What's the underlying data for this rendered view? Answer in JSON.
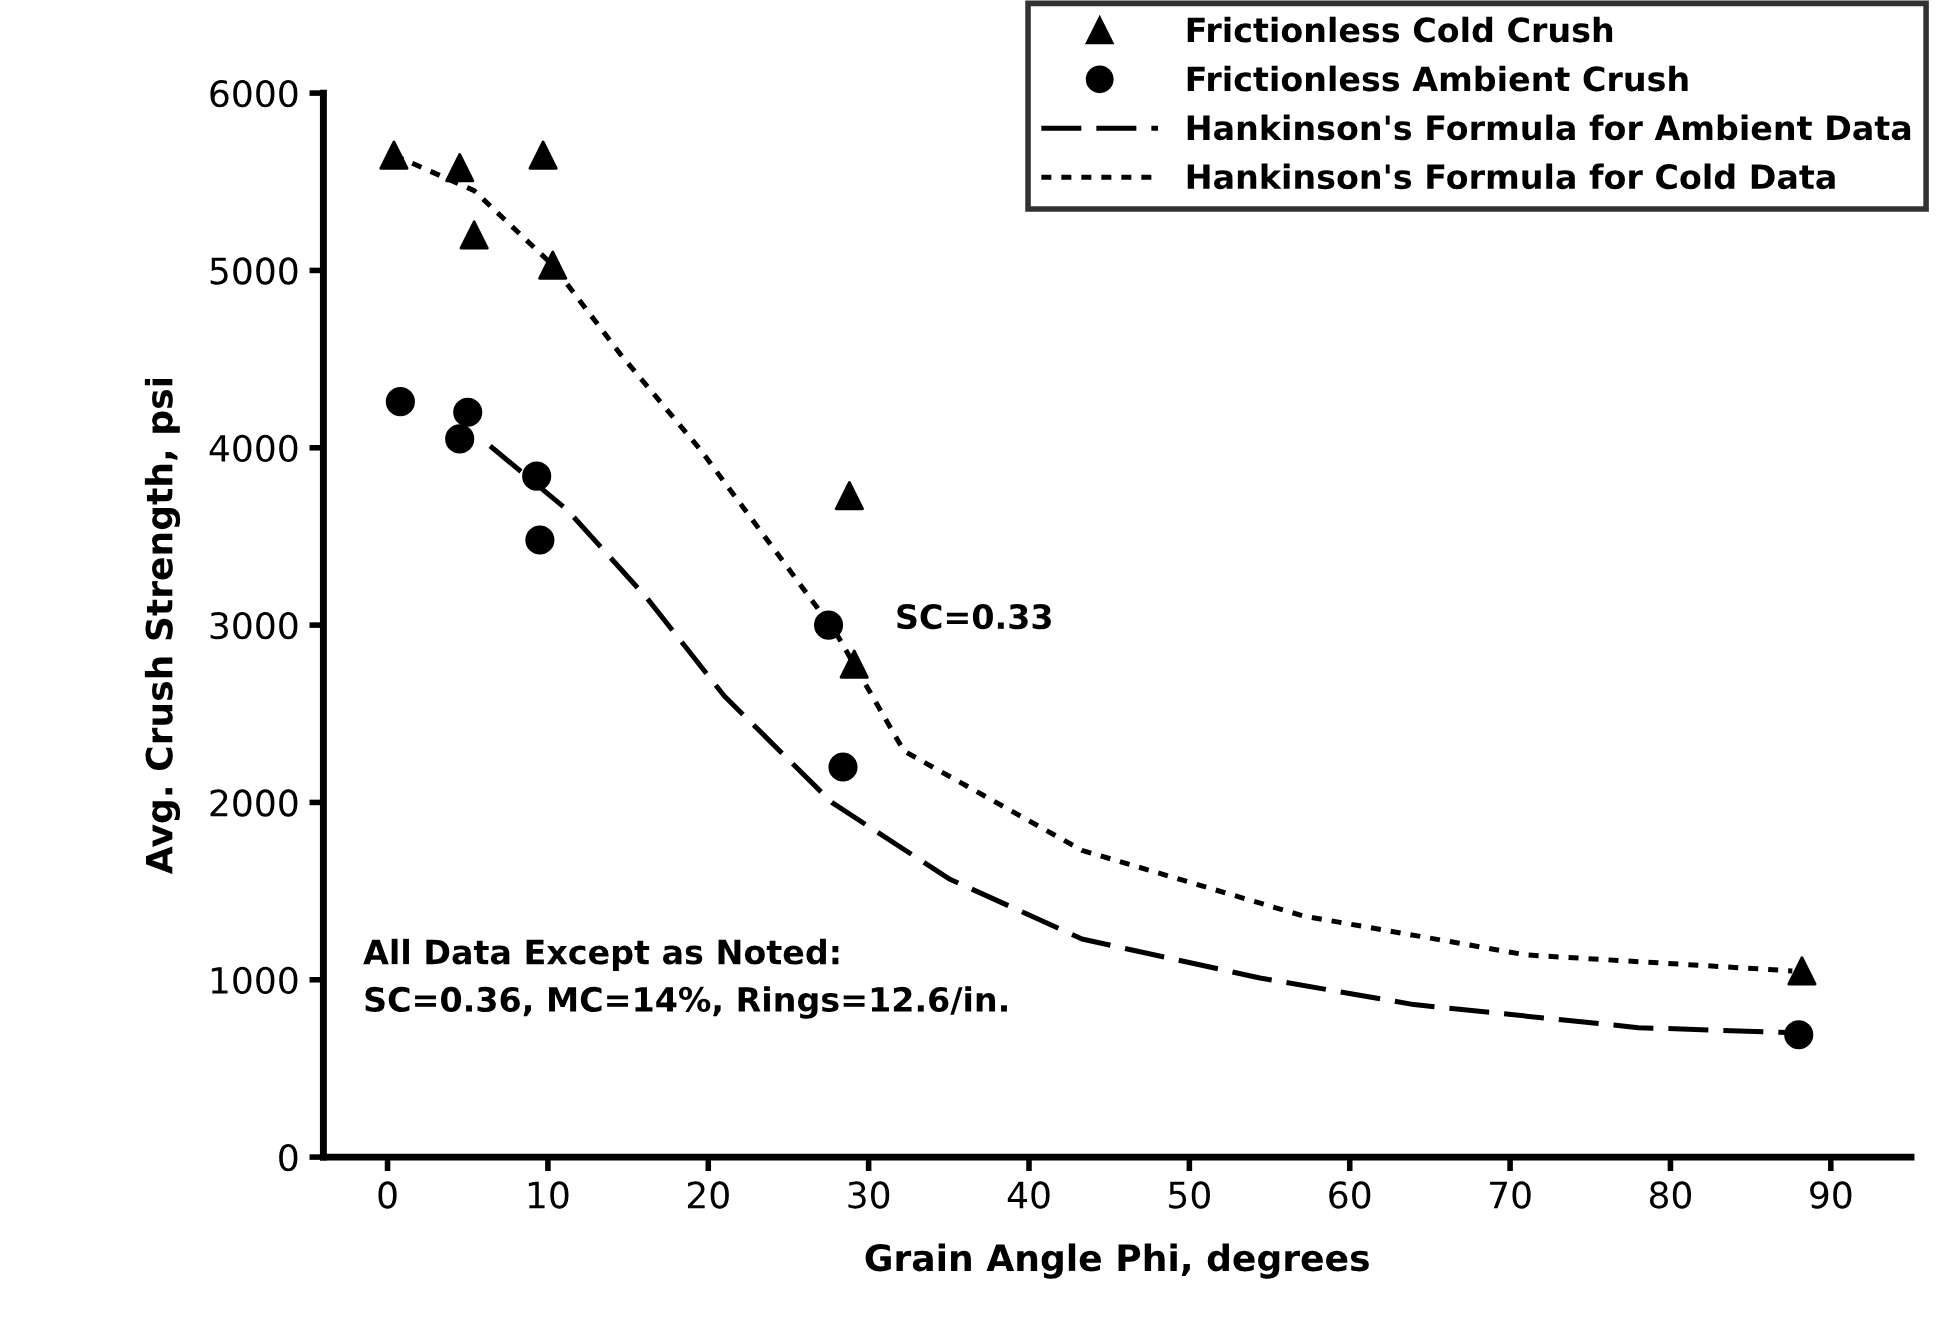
{
  "chart_data": {
    "type": "scatter",
    "xlabel": "Grain Angle Phi, degrees",
    "ylabel": "Avg. Crush Strength, psi",
    "xlim": [
      -4,
      95
    ],
    "xticks": [
      0,
      10,
      20,
      30,
      40,
      50,
      60,
      70,
      80,
      90
    ],
    "ylim": [
      0,
      6000
    ],
    "yticks": [
      0,
      1000,
      2000,
      3000,
      4000,
      5000,
      6000
    ],
    "legend": "top right",
    "grid": false,
    "series": [
      {
        "name": "Frictionless Cold Crush",
        "marker": "triangle",
        "color": "#000000",
        "x": [
          0.4,
          4.5,
          5.4,
          9.7,
          10.3,
          28.8,
          29.1,
          88.2
        ],
        "values": [
          5650,
          5580,
          5200,
          5650,
          5030,
          3730,
          2780,
          1050
        ]
      },
      {
        "name": "Frictionless Ambient Crush",
        "marker": "circle",
        "color": "#000000",
        "x": [
          0.8,
          4.5,
          5,
          9.3,
          9.5,
          27.5,
          28.4,
          88
        ],
        "values": [
          4260,
          4050,
          4200,
          3840,
          3480,
          3000,
          2200,
          690
        ]
      },
      {
        "name": "Hankinson's Formula for Ambient Data",
        "type": "line",
        "line_style": "dashed",
        "marker": "none",
        "color": "#000000",
        "x": [
          6.4,
          11.2,
          16.2,
          21,
          27.7,
          35,
          43.3,
          54.4,
          64,
          78,
          88.3
        ],
        "values": [
          4010,
          3650,
          3150,
          2600,
          2000,
          1570,
          1230,
          1010,
          860,
          730,
          700
        ]
      },
      {
        "name": "Hankinson's Formula for Cold Data",
        "type": "line",
        "line_style": "dotted",
        "marker": "none",
        "color": "#000000",
        "x": [
          0.4,
          5.4,
          10.3,
          14.5,
          19.5,
          24.5,
          28,
          32.2,
          43.3,
          57.1,
          71,
          87.6
        ],
        "values": [
          5650,
          5450,
          5030,
          4530,
          3990,
          3380,
          2950,
          2290,
          1730,
          1360,
          1140,
          1050
        ]
      }
    ],
    "annotations": [
      "SC=0.33",
      "All Data Except as Noted:\nSC=0.36, MC=14%, Rings=12.6/in."
    ]
  }
}
